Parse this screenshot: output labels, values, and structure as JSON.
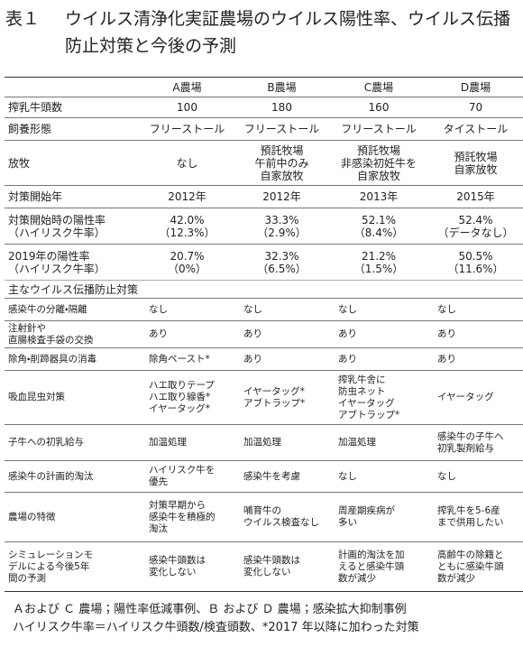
{
  "header": {
    "label": "表１",
    "title": "ウイルス清浄化実証農場のウイルス陽性率、ウイルス伝播防止対策と今後の予測"
  },
  "table": {
    "header": [
      "A農場",
      "B農場",
      "C農場",
      "D農場"
    ],
    "rows": [
      [
        "搾乳牛頭数",
        "100",
        "180",
        "160",
        "70"
      ],
      [
        "飼養形態",
        "フリーストール",
        "フリーストール",
        "フリーストール",
        "タイストール"
      ],
      [
        "放牧",
        "なし",
        "預託牧場\n午前中のみ\n自家放牧",
        "預託牧場\n非感染初妊牛を\n自家放牧",
        "預託牧場\n自家放牧"
      ],
      [
        "対策開始年",
        "2012年",
        "2012年",
        "2013年",
        "2015年"
      ],
      [
        "対策開始時の陽性率\n（ハイリスク牛率）",
        "42.0%\n（12.3%）",
        "33.3%\n（2.9%）",
        "52.1%\n（8.4%）",
        "52.4%\n（データなし）"
      ],
      [
        "2019年の陽性率\n（ハイリスク牛率）",
        "20.7%\n（0%）",
        "32.3%\n（6.5%）",
        "21.2%\n（1.5%）",
        "50.5%\n（11.6%）"
      ]
    ],
    "section": "主なウイルス伝播防止対策",
    "rows2": [
      [
        "感染牛の分離・隔離",
        "なし",
        "なし",
        "なし",
        "なし"
      ],
      [
        "注射針や\n直腸検査手袋の交換",
        "あり",
        "あり",
        "あり",
        "あり"
      ],
      [
        "除角・削蹄器具の消毒",
        "除角ペースト*",
        "あり",
        "あり",
        "あり"
      ],
      [
        "吸血昆虫対策",
        "ハエ取りテープ\nハエ取り線香*\nイヤータッグ*",
        "イヤータッグ*\nアブトラップ*",
        "搾乳牛舎に\n防虫ネット\nイヤータッグ\nアブトラップ*",
        "イヤータッグ"
      ],
      [
        "子牛への初乳給与",
        "加温処理",
        "加温処理",
        "加温処理",
        "感染牛の子牛へ\n初乳製剤給与"
      ],
      [
        "感染牛の計画的淘汰",
        "ハイリスク牛を\n優先",
        "感染牛を考慮",
        "なし",
        "なし"
      ],
      [
        "農場の特徴",
        "対策早期から\n感染牛を積極的\n淘汰",
        "哺育牛の\nウイルス検査なし",
        "周産期疾病が\n多い",
        "搾乳牛を5-6産\nまで供用したい"
      ],
      [
        "シミュレーションモ\nデルによる今後5年\n間の予測",
        "感染牛頭数は\n変化しない",
        "感染牛頭数は\n変化しない",
        "計画的淘汰を加\nえると感染牛頭\n数が減少",
        "高齢牛の除籍と\nともに感染牛頭\n数が減少"
      ]
    ]
  },
  "footnotes": [
    "Ａおよび Ｃ 農場；陽性率低減事例、Ｂ および Ｄ 農場；感染拡大抑制事例",
    "ハイリスク牛率＝ハイリスク牛頭数/検査頭数、*2017 年以降に加わった対策"
  ]
}
